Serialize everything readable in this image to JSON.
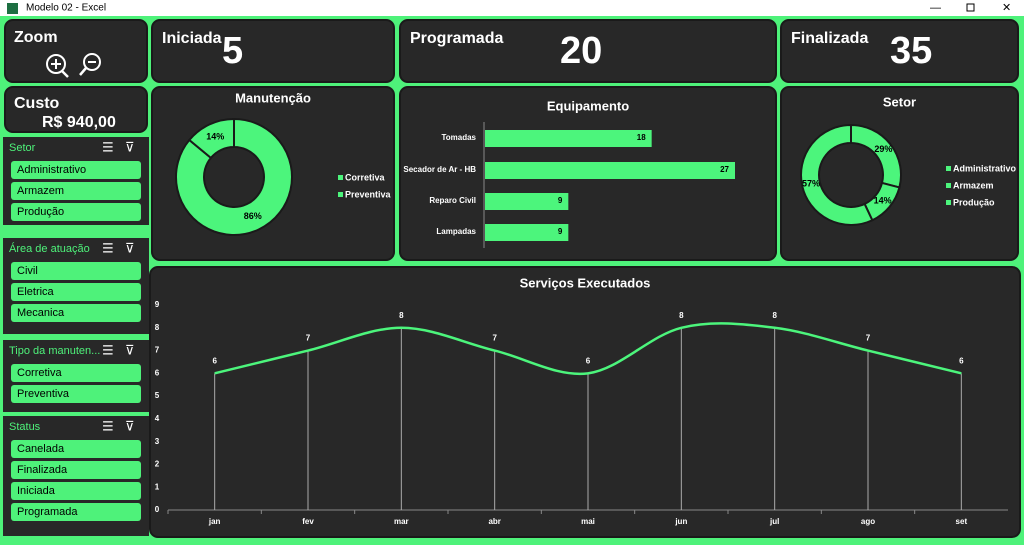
{
  "window": {
    "title": "Modelo 02 - Excel"
  },
  "zoom": {
    "label": "Zoom"
  },
  "kpis": [
    {
      "label": "Iniciada",
      "value": 5
    },
    {
      "label": "Programada",
      "value": 20
    },
    {
      "label": "Finalizada",
      "value": 35
    }
  ],
  "cost": {
    "label": "Custo",
    "value": "R$ 940,00"
  },
  "slicers": [
    {
      "title": "Setor",
      "items": [
        "Administrativo",
        "Armazem",
        "Produção"
      ]
    },
    {
      "title": "Área de atuação",
      "items": [
        "Civil",
        "Eletrica",
        "Mecanica"
      ]
    },
    {
      "title": "Tipo da manuten...",
      "items": [
        "Corretiva",
        "Preventiva"
      ]
    },
    {
      "title": "Status",
      "items": [
        "Canelada",
        "Finalizada",
        "Iniciada",
        "Programada"
      ]
    }
  ],
  "chart_data": [
    {
      "type": "donut",
      "title": "Manutenção",
      "categories": [
        "Corretiva",
        "Preventiva"
      ],
      "values": [
        86,
        14
      ],
      "value_labels": [
        "86%",
        "14%"
      ],
      "color": "#4cf57c"
    },
    {
      "type": "hbar",
      "title": "Equipamento",
      "categories": [
        "Tomadas",
        "Secador de Ar - HB",
        "Reparo Civil",
        "Lampadas"
      ],
      "values": [
        18,
        27,
        9,
        9
      ],
      "color": "#4cf57c"
    },
    {
      "type": "donut",
      "title": "Setor",
      "categories": [
        "Administrativo",
        "Armazem",
        "Produção"
      ],
      "values": [
        29,
        14,
        57
      ],
      "value_labels": [
        "29%",
        "14%",
        "57%"
      ],
      "color": "#4cf57c"
    },
    {
      "type": "line",
      "title": "Serviços Executados",
      "categories": [
        "jan",
        "fev",
        "mar",
        "abr",
        "mai",
        "jun",
        "jul",
        "ago",
        "set"
      ],
      "values": [
        6,
        7,
        8,
        7,
        6,
        8,
        8,
        7,
        6
      ],
      "color": "#4cf57c",
      "ylim": [
        0,
        9
      ],
      "yticks": [
        0,
        1,
        2,
        3,
        4,
        5,
        6,
        7,
        8,
        9
      ]
    }
  ]
}
